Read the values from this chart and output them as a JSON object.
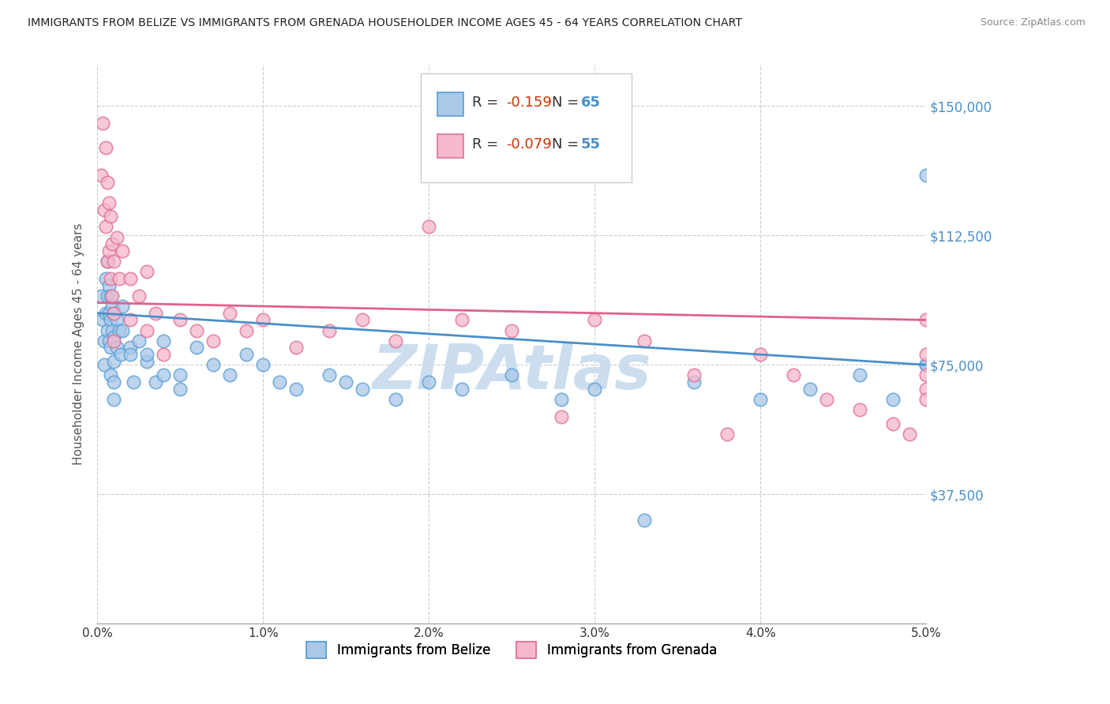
{
  "title": "IMMIGRANTS FROM BELIZE VS IMMIGRANTS FROM GRENADA HOUSEHOLDER INCOME AGES 45 - 64 YEARS CORRELATION CHART",
  "source": "Source: ZipAtlas.com",
  "ylabel": "Householder Income Ages 45 - 64 years",
  "xlim": [
    0.0,
    0.05
  ],
  "ylim": [
    0,
    162000
  ],
  "ytick_vals": [
    0,
    37500,
    75000,
    112500,
    150000
  ],
  "ytick_labels": [
    "",
    "$37,500",
    "$75,000",
    "$112,500",
    "$150,000"
  ],
  "xtick_vals": [
    0.0,
    0.01,
    0.02,
    0.03,
    0.04,
    0.05
  ],
  "xtick_labels": [
    "0.0%",
    "1.0%",
    "2.0%",
    "3.0%",
    "4.0%",
    "5.0%"
  ],
  "belize_fill": "#aac8e8",
  "belize_edge": "#5a9fd4",
  "grenada_fill": "#f5b8cc",
  "grenada_edge": "#e07095",
  "belize_trend_color": "#4a8fc8",
  "grenada_trend_color": "#e06090",
  "belize_R": -0.159,
  "belize_N": 65,
  "grenada_R": -0.079,
  "grenada_N": 55,
  "grid_color": "#cccccc",
  "bg_color": "#ffffff",
  "watermark": "ZIPAtlas",
  "watermark_color": "#ccddf0",
  "title_color": "#222222",
  "source_color": "#888888",
  "ylabel_color": "#555555",
  "ytick_color": "#4a8fc8",
  "R_text_color": "#cc3300",
  "N_text_color": "#4a8fc8",
  "belize_x": [
    0.0002,
    0.0003,
    0.0004,
    0.0004,
    0.0005,
    0.0005,
    0.0006,
    0.0006,
    0.0006,
    0.0007,
    0.0007,
    0.0007,
    0.0008,
    0.0008,
    0.0008,
    0.0008,
    0.0009,
    0.0009,
    0.001,
    0.001,
    0.001,
    0.001,
    0.001,
    0.0012,
    0.0012,
    0.0013,
    0.0014,
    0.0015,
    0.0015,
    0.002,
    0.002,
    0.0022,
    0.0025,
    0.003,
    0.003,
    0.0035,
    0.004,
    0.004,
    0.005,
    0.005,
    0.006,
    0.007,
    0.008,
    0.009,
    0.01,
    0.011,
    0.012,
    0.014,
    0.015,
    0.016,
    0.018,
    0.02,
    0.022,
    0.025,
    0.028,
    0.03,
    0.033,
    0.036,
    0.04,
    0.043,
    0.046,
    0.048,
    0.05,
    0.05,
    0.05
  ],
  "belize_y": [
    95000,
    88000,
    82000,
    75000,
    100000,
    90000,
    105000,
    95000,
    85000,
    98000,
    90000,
    82000,
    95000,
    88000,
    80000,
    72000,
    92000,
    85000,
    90000,
    83000,
    76000,
    70000,
    65000,
    88000,
    80000,
    85000,
    78000,
    92000,
    85000,
    80000,
    78000,
    70000,
    82000,
    76000,
    78000,
    70000,
    72000,
    82000,
    68000,
    72000,
    80000,
    75000,
    72000,
    78000,
    75000,
    70000,
    68000,
    72000,
    70000,
    68000,
    65000,
    70000,
    68000,
    72000,
    65000,
    68000,
    30000,
    70000,
    65000,
    68000,
    72000,
    65000,
    130000,
    75000,
    75000
  ],
  "grenada_x": [
    0.0002,
    0.0003,
    0.0004,
    0.0005,
    0.0005,
    0.0006,
    0.0006,
    0.0007,
    0.0007,
    0.0008,
    0.0008,
    0.0009,
    0.0009,
    0.001,
    0.001,
    0.001,
    0.0012,
    0.0013,
    0.0015,
    0.002,
    0.002,
    0.0025,
    0.003,
    0.003,
    0.0035,
    0.004,
    0.005,
    0.006,
    0.007,
    0.008,
    0.009,
    0.01,
    0.012,
    0.014,
    0.016,
    0.018,
    0.02,
    0.022,
    0.025,
    0.028,
    0.03,
    0.033,
    0.036,
    0.038,
    0.04,
    0.042,
    0.044,
    0.046,
    0.048,
    0.049,
    0.05,
    0.05,
    0.05,
    0.05,
    0.05
  ],
  "grenada_y": [
    130000,
    145000,
    120000,
    138000,
    115000,
    128000,
    105000,
    122000,
    108000,
    118000,
    100000,
    110000,
    95000,
    105000,
    90000,
    82000,
    112000,
    100000,
    108000,
    100000,
    88000,
    95000,
    102000,
    85000,
    90000,
    78000,
    88000,
    85000,
    82000,
    90000,
    85000,
    88000,
    80000,
    85000,
    88000,
    82000,
    115000,
    88000,
    85000,
    60000,
    88000,
    82000,
    72000,
    55000,
    78000,
    72000,
    65000,
    62000,
    58000,
    55000,
    88000,
    78000,
    72000,
    68000,
    65000
  ]
}
